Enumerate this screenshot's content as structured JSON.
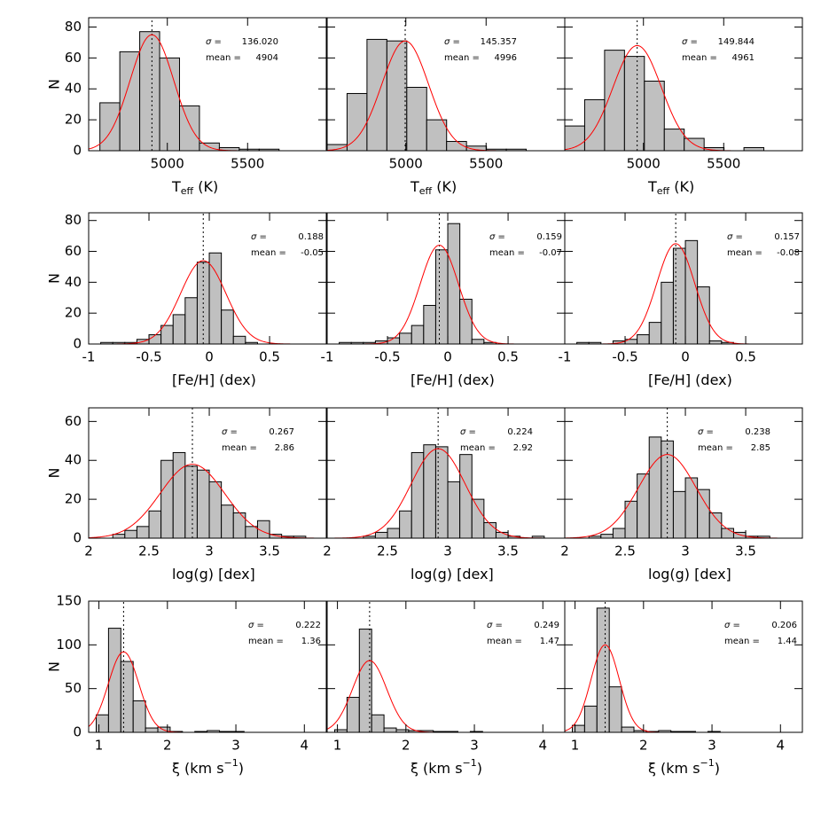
{
  "chart_data": [
    {
      "type": "histogram",
      "bins": [
        4580,
        4704,
        4828,
        4952,
        5076,
        5200,
        5324,
        5448,
        5572,
        5696
      ],
      "counts": [
        31,
        64,
        77,
        60,
        29,
        5,
        2,
        1,
        1
      ],
      "bar_color": "#c0c0c0",
      "xlim": [
        4510,
        5990
      ],
      "ylim": [
        0,
        86
      ],
      "xticks": [
        5000,
        5500
      ],
      "yticks": [
        0,
        20,
        40,
        60,
        80
      ],
      "x_label": [
        {
          "text": "T"
        },
        {
          "text": "eff",
          "shift": "sub"
        },
        {
          "text": " (K)"
        }
      ],
      "y_label": "N",
      "fit": {
        "sigma_text": "σ =",
        "sigma": 136.02,
        "sigma_label": "136.020",
        "mean_text": "mean =",
        "mean": 4904,
        "peak": 75,
        "color": "#ff0000"
      }
    },
    {
      "type": "histogram",
      "bins": [
        4510,
        4634,
        4758,
        4882,
        5006,
        5130,
        5254,
        5378,
        5502,
        5626,
        5750
      ],
      "counts": [
        4,
        37,
        72,
        71,
        41,
        20,
        6,
        3,
        1,
        1
      ],
      "bar_color": "#c0c0c0",
      "xlim": [
        4510,
        5990
      ],
      "ylim": [
        0,
        86
      ],
      "xticks": [
        5000,
        5500
      ],
      "yticks": [
        0,
        20,
        40,
        60,
        80
      ],
      "ytick_labels": false,
      "x_label": [
        {
          "text": "T"
        },
        {
          "text": "eff",
          "shift": "sub"
        },
        {
          "text": " (K)"
        }
      ],
      "fit": {
        "sigma_text": "σ =",
        "sigma": 145.357,
        "mean_text": "mean =",
        "mean": 4996,
        "peak": 71,
        "color": "#ff0000"
      }
    },
    {
      "type": "histogram",
      "bins": [
        4510,
        4634,
        4758,
        4882,
        5006,
        5130,
        5254,
        5378,
        5502,
        5626,
        5750
      ],
      "counts": [
        16,
        33,
        65,
        61,
        45,
        14,
        8,
        2,
        0,
        2
      ],
      "bar_color": "#c0c0c0",
      "xlim": [
        4510,
        5990
      ],
      "ylim": [
        0,
        86
      ],
      "xticks": [
        5000,
        5500
      ],
      "yticks": [
        0,
        20,
        40,
        60,
        80
      ],
      "ytick_labels": false,
      "x_label": [
        {
          "text": "T"
        },
        {
          "text": "eff",
          "shift": "sub"
        },
        {
          "text": " (K)"
        }
      ],
      "fit": {
        "sigma_text": "σ =",
        "sigma": 149.844,
        "mean_text": "mean =",
        "mean": 4961,
        "peak": 68,
        "color": "#ff0000"
      }
    },
    {
      "type": "histogram",
      "bins": [
        -0.9,
        -0.8,
        -0.7,
        -0.6,
        -0.5,
        -0.4,
        -0.3,
        -0.2,
        -0.1,
        0,
        0.1,
        0.2,
        0.3,
        0.4
      ],
      "counts": [
        1,
        1,
        1,
        3,
        6,
        12,
        19,
        30,
        53,
        59,
        22,
        5,
        1
      ],
      "bar_color": "#c0c0c0",
      "xlim": [
        -1,
        0.97
      ],
      "ylim": [
        0,
        85
      ],
      "xticks": [
        -1,
        -0.5,
        0,
        0.5
      ],
      "yticks": [
        0,
        20,
        40,
        60,
        80
      ],
      "x_label": [
        {
          "text": "[Fe/H] (dex)"
        }
      ],
      "y_label": "N",
      "fit": {
        "sigma_text": "σ =",
        "sigma": 0.188,
        "mean_text": "mean =",
        "mean": -0.05,
        "peak": 54,
        "color": "#ff0000"
      }
    },
    {
      "type": "histogram",
      "bins": [
        -0.9,
        -0.8,
        -0.7,
        -0.6,
        -0.5,
        -0.4,
        -0.3,
        -0.2,
        -0.1,
        0,
        0.1,
        0.2,
        0.3,
        0.4
      ],
      "counts": [
        1,
        1,
        1,
        2,
        4,
        7,
        12,
        25,
        61,
        78,
        29,
        3,
        1
      ],
      "bar_color": "#c0c0c0",
      "xlim": [
        -1,
        0.97
      ],
      "ylim": [
        0,
        85
      ],
      "xticks": [
        -1,
        -0.5,
        0,
        0.5
      ],
      "yticks": [
        0,
        20,
        40,
        60,
        80
      ],
      "ytick_labels": false,
      "x_label": [
        {
          "text": "[Fe/H] (dex)"
        }
      ],
      "fit": {
        "sigma_text": "σ =",
        "sigma": 0.159,
        "mean_text": "mean =",
        "mean": -0.07,
        "peak": 64,
        "color": "#ff0000"
      }
    },
    {
      "type": "histogram",
      "bins": [
        -0.9,
        -0.8,
        -0.7,
        -0.6,
        -0.5,
        -0.4,
        -0.3,
        -0.2,
        -0.1,
        0,
        0.1,
        0.2,
        0.3,
        0.4
      ],
      "counts": [
        1,
        1,
        0,
        2,
        3,
        6,
        14,
        40,
        62,
        67,
        37,
        2,
        1
      ],
      "bar_color": "#c0c0c0",
      "xlim": [
        -1,
        0.97
      ],
      "ylim": [
        0,
        85
      ],
      "xticks": [
        -1,
        -0.5,
        0,
        0.5
      ],
      "yticks": [
        0,
        20,
        40,
        60,
        80
      ],
      "ytick_labels": false,
      "x_label": [
        {
          "text": "[Fe/H] (dex)"
        }
      ],
      "fit": {
        "sigma_text": "σ =",
        "sigma": 0.157,
        "mean_text": "mean =",
        "mean": -0.08,
        "peak": 65,
        "color": "#ff0000"
      }
    },
    {
      "type": "histogram",
      "bins": [
        2.2,
        2.3,
        2.4,
        2.5,
        2.6,
        2.7,
        2.8,
        2.9,
        3,
        3.1,
        3.2,
        3.3,
        3.4,
        3.5,
        3.6,
        3.7,
        3.8
      ],
      "counts": [
        2,
        4,
        6,
        14,
        40,
        44,
        37,
        35,
        29,
        17,
        13,
        6,
        9,
        2,
        1,
        1
      ],
      "bar_color": "#c0c0c0",
      "xlim": [
        2,
        3.97
      ],
      "ylim": [
        0,
        67
      ],
      "xticks": [
        2,
        2.5,
        3,
        3.5
      ],
      "yticks": [
        0,
        20,
        40,
        60
      ],
      "x_label": [
        {
          "text": "log(g) [dex]"
        }
      ],
      "y_label": "N",
      "fit": {
        "sigma_text": "σ =",
        "sigma": 0.267,
        "mean_text": "mean =",
        "mean": 2.86,
        "peak": 38,
        "color": "#ff0000"
      }
    },
    {
      "type": "histogram",
      "bins": [
        2.3,
        2.4,
        2.5,
        2.6,
        2.7,
        2.8,
        2.9,
        3,
        3.1,
        3.2,
        3.3,
        3.4,
        3.5,
        3.6,
        3.7,
        3.8
      ],
      "counts": [
        1,
        3,
        5,
        14,
        44,
        48,
        47,
        29,
        43,
        20,
        8,
        3,
        1,
        0,
        1
      ],
      "bar_color": "#c0c0c0",
      "xlim": [
        2,
        3.97
      ],
      "ylim": [
        0,
        67
      ],
      "xticks": [
        2,
        2.5,
        3,
        3.5
      ],
      "yticks": [
        0,
        20,
        40,
        60
      ],
      "ytick_labels": false,
      "x_label": [
        {
          "text": "log(g) [dex]"
        }
      ],
      "fit": {
        "sigma_text": "σ =",
        "sigma": 0.224,
        "mean_text": "mean =",
        "mean": 2.92,
        "peak": 46,
        "color": "#ff0000"
      }
    },
    {
      "type": "histogram",
      "bins": [
        2.2,
        2.3,
        2.4,
        2.5,
        2.6,
        2.7,
        2.8,
        2.9,
        3,
        3.1,
        3.2,
        3.3,
        3.4,
        3.5,
        3.6,
        3.7
      ],
      "counts": [
        1,
        2,
        5,
        19,
        33,
        52,
        50,
        24,
        31,
        25,
        13,
        5,
        3,
        1,
        1
      ],
      "bar_color": "#c0c0c0",
      "xlim": [
        2,
        3.97
      ],
      "ylim": [
        0,
        67
      ],
      "xticks": [
        2,
        2.5,
        3,
        3.5
      ],
      "yticks": [
        0,
        20,
        40,
        60
      ],
      "ytick_labels": false,
      "x_label": [
        {
          "text": "log(g) [dex]"
        }
      ],
      "fit": {
        "sigma_text": "σ =",
        "sigma": 0.238,
        "mean_text": "mean =",
        "mean": 2.85,
        "peak": 43,
        "color": "#ff0000"
      }
    },
    {
      "type": "histogram",
      "bins": [
        0.96,
        1.14,
        1.32,
        1.5,
        1.68,
        1.86,
        2.04,
        2.22,
        2.4,
        2.58,
        2.76,
        2.94,
        3.12
      ],
      "counts": [
        20,
        119,
        81,
        36,
        5,
        6,
        1,
        0,
        1,
        2,
        1,
        1
      ],
      "bar_color": "#c0c0c0",
      "xlim": [
        0.85,
        4.32
      ],
      "ylim": [
        0,
        150
      ],
      "xticks": [
        1,
        2,
        3,
        4
      ],
      "yticks": [
        0,
        50,
        100,
        150
      ],
      "x_label": [
        {
          "text": "ξ (km s"
        },
        {
          "text": "−1",
          "shift": "sup"
        },
        {
          "text": ")"
        }
      ],
      "y_label": "N",
      "fit": {
        "sigma_text": "σ =",
        "sigma": 0.222,
        "mean_text": "mean =",
        "mean": 1.36,
        "peak": 92,
        "color": "#ff0000"
      }
    },
    {
      "type": "histogram",
      "bins": [
        0.96,
        1.14,
        1.32,
        1.5,
        1.68,
        1.86,
        2.04,
        2.22,
        2.4,
        2.58,
        2.76,
        2.94,
        3.12
      ],
      "counts": [
        3,
        40,
        118,
        20,
        5,
        3,
        2,
        2,
        1,
        1,
        0,
        1
      ],
      "bar_color": "#c0c0c0",
      "xlim": [
        0.85,
        4.32
      ],
      "ylim": [
        0,
        150
      ],
      "xticks": [
        1,
        2,
        3,
        4
      ],
      "yticks": [
        0,
        50,
        100,
        150
      ],
      "ytick_labels": false,
      "x_label": [
        {
          "text": "ξ (km s"
        },
        {
          "text": "−1",
          "shift": "sup"
        },
        {
          "text": ")"
        }
      ],
      "fit": {
        "sigma_text": "σ =",
        "sigma": 0.249,
        "mean_text": "mean =",
        "mean": 1.47,
        "peak": 82,
        "color": "#ff0000"
      }
    },
    {
      "type": "histogram",
      "bins": [
        0.96,
        1.14,
        1.32,
        1.5,
        1.68,
        1.86,
        2.04,
        2.22,
        2.4,
        2.58,
        2.76,
        2.94,
        3.12
      ],
      "counts": [
        8,
        30,
        142,
        52,
        6,
        2,
        1,
        2,
        1,
        1,
        0,
        1
      ],
      "bar_color": "#c0c0c0",
      "xlim": [
        0.85,
        4.32
      ],
      "ylim": [
        0,
        150
      ],
      "xticks": [
        1,
        2,
        3,
        4
      ],
      "yticks": [
        0,
        50,
        100,
        150
      ],
      "ytick_labels": false,
      "x_label": [
        {
          "text": "ξ (km s"
        },
        {
          "text": "−1",
          "shift": "sup"
        },
        {
          "text": ")"
        }
      ],
      "fit": {
        "sigma_text": "σ =",
        "sigma": 0.206,
        "mean_text": "mean =",
        "mean": 1.44,
        "peak": 100,
        "color": "#ff0000"
      }
    }
  ]
}
